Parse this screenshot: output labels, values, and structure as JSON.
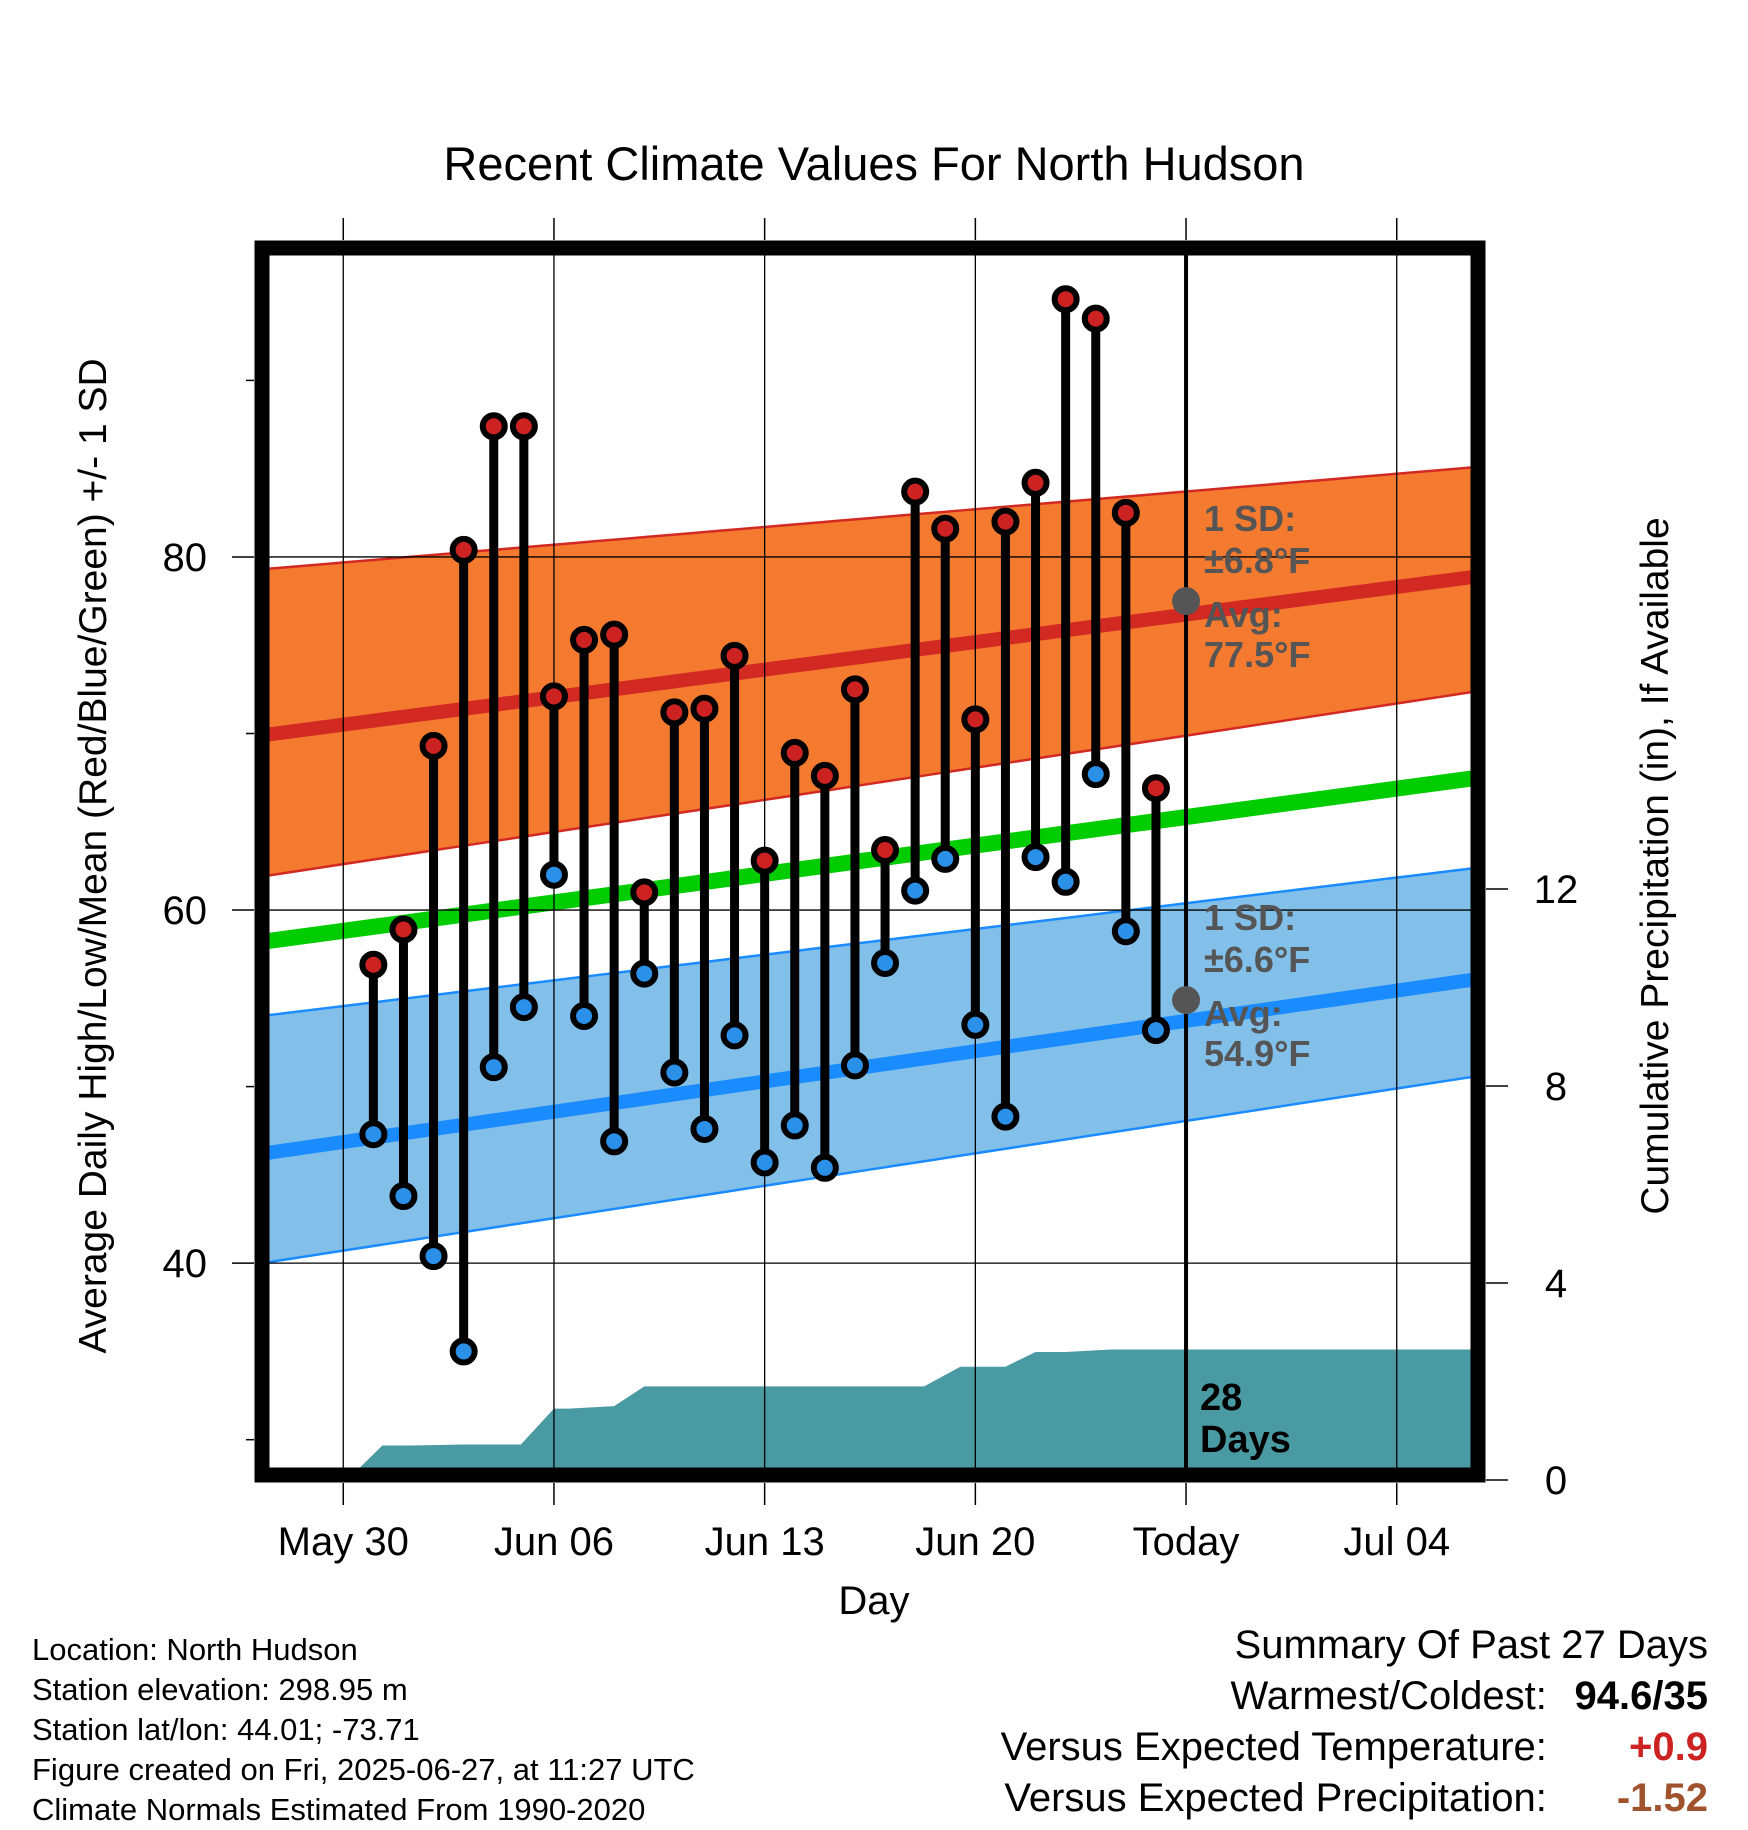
{
  "chart_data": {
    "type": "line",
    "title": "Recent Climate Values For North Hudson",
    "xlabel": "Day",
    "ylabel_left": "Average Daily High/Low/Mean (Red/Blue/Green) +/- 1 SD",
    "ylabel_right": "Cumulative Precipitation (in), If Available",
    "x_ticks": [
      {
        "day": 0,
        "label": "May 30"
      },
      {
        "day": 7,
        "label": "Jun 06"
      },
      {
        "day": 14,
        "label": "Jun 13"
      },
      {
        "day": 21,
        "label": "Jun 20"
      },
      {
        "day": 28,
        "label": "Today"
      },
      {
        "day": 35,
        "label": "Jul 04"
      }
    ],
    "xlim": [
      -2.7,
      37.7
    ],
    "ylim_left": [
      28,
      97.5
    ],
    "y_ticks_left": [
      40,
      60,
      80
    ],
    "y_ticks_right": [
      0,
      4,
      8,
      12
    ],
    "today_marker_label": "28\nDays",
    "normals": {
      "high_mean": {
        "day": [
          -2.7,
          37.7
        ],
        "value": [
          69.9,
          78.9
        ]
      },
      "high_band_upper": {
        "day": [
          -2.7,
          37.7
        ],
        "value": [
          79.3,
          85.1
        ]
      },
      "high_band_lower": {
        "day": [
          -2.7,
          37.7
        ],
        "value": [
          61.9,
          72.4
        ]
      },
      "mean": {
        "day": [
          -2.7,
          37.7
        ],
        "value": [
          58.2,
          67.5
        ]
      },
      "low_mean": {
        "day": [
          -2.7,
          37.7
        ],
        "value": [
          46.2,
          56.1
        ]
      },
      "low_band_upper": {
        "day": [
          -2.7,
          37.7
        ],
        "value": [
          54.0,
          62.4
        ]
      },
      "low_band_lower": {
        "day": [
          -2.7,
          37.7
        ],
        "value": [
          40.0,
          50.6
        ]
      }
    },
    "series": [
      {
        "name": "High",
        "day": [
          1,
          2,
          3,
          4,
          5,
          6,
          7,
          8,
          9,
          10,
          11,
          12,
          13,
          14,
          15,
          16,
          17,
          18,
          19,
          20,
          21,
          22,
          23,
          24,
          25,
          26,
          27
        ],
        "values": [
          56.9,
          58.9,
          69.3,
          80.4,
          87.4,
          87.4,
          72.1,
          75.3,
          75.6,
          61.0,
          71.2,
          71.4,
          74.4,
          62.8,
          68.9,
          67.6,
          72.5,
          63.4,
          83.7,
          81.6,
          70.8,
          82.0,
          84.2,
          94.6,
          93.5,
          82.5,
          66.9
        ]
      },
      {
        "name": "Low",
        "day": [
          1,
          2,
          3,
          4,
          5,
          6,
          7,
          8,
          9,
          10,
          11,
          12,
          13,
          14,
          15,
          16,
          17,
          18,
          19,
          20,
          21,
          22,
          23,
          24,
          25,
          26,
          27
        ],
        "values": [
          47.3,
          43.8,
          40.4,
          35.0,
          51.1,
          54.5,
          62.0,
          54.0,
          46.9,
          56.4,
          50.8,
          47.6,
          52.9,
          45.7,
          47.8,
          45.4,
          51.2,
          57.0,
          61.1,
          62.9,
          53.5,
          48.3,
          63.0,
          61.6,
          67.7,
          58.8,
          53.2
        ]
      }
    ],
    "precipitation": {
      "day": [
        -2.7,
        0.3,
        1.3,
        2.3,
        4,
        5.9,
        7,
        7.5,
        9,
        10,
        11,
        19.3,
        20.5,
        22,
        23,
        24,
        25.5,
        28,
        37.7
      ],
      "value": [
        0,
        0,
        0.7,
        0.7,
        0.72,
        0.72,
        1.45,
        1.45,
        1.5,
        1.9,
        1.9,
        1.9,
        2.3,
        2.3,
        2.6,
        2.6,
        2.65,
        2.65,
        2.65
      ]
    },
    "annotations": [
      {
        "label_sd": "1 SD:",
        "label_sd_value": "±6.8°F",
        "label_avg": "Avg:",
        "label_avg_value": "77.5°F",
        "day": 28,
        "value": 77.5
      },
      {
        "label_sd": "1 SD:",
        "label_sd_value": "±6.6°F",
        "label_avg": "Avg:",
        "label_avg_value": "54.9°F",
        "day": 28,
        "value": 54.9
      }
    ],
    "colors": {
      "high_band": "#f47a30",
      "high_line": "#d22a22",
      "mean_line": "#00cc00",
      "low_band": "#82c0ea",
      "low_line": "#1a8cff",
      "precip": "#4a9aa4",
      "high_marker": "#cc2222",
      "low_marker": "#2a90e8",
      "today_marker": "#555555",
      "annotation_text": "#555555"
    }
  },
  "footer": {
    "location": "Location: North Hudson",
    "elevation": "Station elevation: 298.95 m",
    "latlon": "Station lat/lon: 44.01; -73.71",
    "created": "Figure created on Fri, 2025-06-27, at 11:27 UTC",
    "normals": "Climate Normals Estimated From 1990-2020"
  },
  "summary": {
    "title": "Summary Of Past 27 Days",
    "warmest_label": "Warmest/Coldest:",
    "warmest_value": "94.6/35",
    "temp_label": "Versus Expected Temperature:",
    "temp_value": "+0.9",
    "temp_color": "#cc2222",
    "precip_label": "Versus Expected Precipitation:",
    "precip_value": "-1.52",
    "precip_color": "#a0522d"
  }
}
